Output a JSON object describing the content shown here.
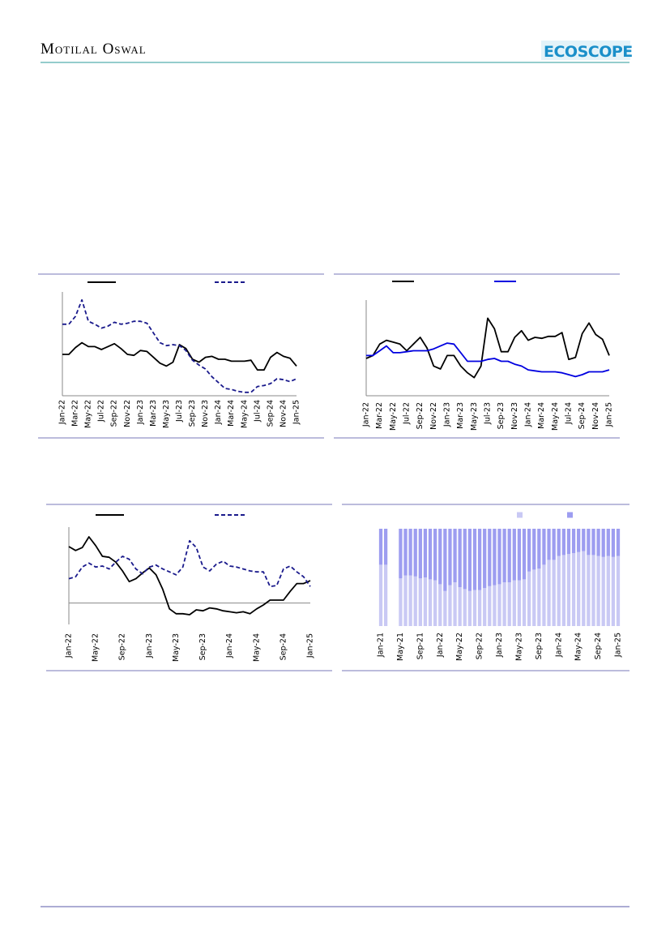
{
  "header": {
    "brand": "Motilal Oswal",
    "logo": "ECOSCOPE"
  },
  "chart_data": [
    {
      "type": "line",
      "categories": [
        "Jan-22",
        null,
        "Mar-22",
        null,
        "May-22",
        null,
        "Jul-22",
        null,
        "Sep-22",
        null,
        "Nov-22",
        null,
        "Jan-23",
        null,
        "Mar-23",
        null,
        "May-23",
        null,
        "Jul-23",
        null,
        "Sep-23",
        null,
        "Nov-23",
        null,
        "Jan-24",
        null,
        "Mar-24",
        null,
        "May-24",
        null,
        "Jul-24",
        null,
        "Sep-24",
        null,
        "Nov-24",
        null,
        "Jan-25"
      ],
      "ylim": [
        0,
        100
      ],
      "series": [
        {
          "color": "#000000",
          "dash": false,
          "values": [
            40,
            40,
            47,
            52,
            48,
            48,
            45,
            48,
            51,
            46,
            40,
            39,
            44,
            43,
            37,
            31,
            28,
            32,
            50,
            46,
            35,
            32,
            37,
            38,
            35,
            35,
            33,
            33,
            33,
            34,
            24,
            24,
            37,
            42,
            38,
            36,
            28
          ]
        },
        {
          "color": "#1a1a8c",
          "dash": true,
          "values": [
            71,
            71,
            79,
            96,
            74,
            71,
            67,
            69,
            73,
            71,
            72,
            74,
            74,
            72,
            62,
            52,
            49,
            50,
            49,
            44,
            34,
            29,
            25,
            17,
            11,
            5,
            4,
            2,
            1,
            1,
            7,
            8,
            10,
            15,
            14,
            12,
            15
          ]
        }
      ]
    },
    {
      "type": "line",
      "categories": [
        "Jan-22",
        null,
        "Mar-22",
        null,
        "May-22",
        null,
        "Jul-22",
        null,
        "Sep-22",
        null,
        "Nov-22",
        null,
        "Jan-23",
        null,
        "Mar-23",
        null,
        "May-23",
        null,
        "Jul-23",
        null,
        "Sep-23",
        null,
        "Nov-23",
        null,
        "Jan-24",
        null,
        "Mar-24",
        null,
        "May-24",
        null,
        "Jul-24",
        null,
        "Sep-24",
        null,
        "Nov-24",
        null,
        "Jan-25"
      ],
      "ylim": [
        0,
        100
      ],
      "series": [
        {
          "color": "#000000",
          "dash": false,
          "values": [
            39,
            42,
            54,
            58,
            56,
            54,
            47,
            54,
            61,
            50,
            31,
            28,
            42,
            42,
            31,
            24,
            19,
            31,
            81,
            70,
            46,
            46,
            61,
            68,
            58,
            61,
            60,
            62,
            62,
            66,
            38,
            40,
            65,
            76,
            64,
            59,
            42
          ]
        },
        {
          "color": "#0000e0",
          "dash": false,
          "values": [
            42,
            42,
            47,
            52,
            45,
            45,
            46,
            47,
            47,
            47,
            49,
            52,
            55,
            54,
            45,
            36,
            36,
            36,
            38,
            39,
            36,
            36,
            33,
            31,
            27,
            26,
            25,
            25,
            25,
            24,
            22,
            20,
            22,
            25,
            25,
            25,
            27
          ]
        }
      ]
    },
    {
      "type": "line",
      "categories": [
        "Jan-22",
        null,
        null,
        null,
        "May-22",
        null,
        null,
        null,
        "Sep-22",
        null,
        null,
        null,
        "Jan-23",
        null,
        null,
        null,
        "May-23",
        null,
        null,
        null,
        "Sep-23",
        null,
        null,
        null,
        "Jan-24",
        null,
        null,
        null,
        "May-24",
        null,
        null,
        null,
        "Sep-24",
        null,
        null,
        null,
        "Jan-25"
      ],
      "ylim": [
        -22,
        78
      ],
      "zero_line": true,
      "series": [
        {
          "color": "#000000",
          "dash": false,
          "values": [
            58,
            54,
            57,
            68,
            59,
            48,
            47,
            42,
            33,
            22,
            25,
            31,
            36,
            29,
            14,
            -6,
            -11,
            -11,
            -12,
            -7,
            -8,
            -5,
            -6,
            -8,
            -9,
            -10,
            -9,
            -11,
            -6,
            -2,
            3,
            3,
            3,
            12,
            20,
            20,
            23
          ]
        },
        {
          "color": "#1a1a8c",
          "dash": true,
          "values": [
            25,
            27,
            37,
            41,
            37,
            38,
            35,
            42,
            48,
            45,
            35,
            30,
            37,
            39,
            35,
            32,
            29,
            37,
            64,
            57,
            37,
            33,
            40,
            43,
            38,
            37,
            35,
            33,
            32,
            32,
            17,
            18,
            35,
            38,
            32,
            27,
            17
          ]
        }
      ]
    },
    {
      "type": "bar",
      "stacked": true,
      "categories": [
        "Jan-21",
        null,
        null,
        null,
        "May-21",
        null,
        null,
        null,
        "Sep-21",
        null,
        null,
        null,
        "Jan-22",
        null,
        null,
        null,
        "May-22",
        null,
        null,
        null,
        "Sep-22",
        null,
        null,
        null,
        "Jan-23",
        null,
        null,
        null,
        "May-23",
        null,
        null,
        null,
        "Sep-23",
        null,
        null,
        null,
        "Jan-24",
        null,
        null,
        null,
        "May-24",
        null,
        null,
        null,
        "Sep-24",
        null,
        null,
        null,
        "Jan-25"
      ],
      "ylim": [
        0,
        100
      ],
      "series": [
        {
          "color": "#c9c9f4",
          "values": [
            63,
            63,
            null,
            null,
            49,
            52,
            52,
            51,
            49,
            50,
            48,
            47,
            43,
            36,
            42,
            45,
            40,
            38,
            36,
            37,
            37,
            39,
            41,
            42,
            43,
            45,
            45,
            47,
            47,
            48,
            56,
            58,
            59,
            63,
            68,
            68,
            72,
            73,
            74,
            75,
            76,
            77,
            73,
            73,
            72,
            71,
            72,
            71,
            72
          ]
        },
        {
          "color": "#9d9df0",
          "values": [
            37,
            37,
            null,
            null,
            51,
            48,
            48,
            49,
            51,
            50,
            52,
            53,
            57,
            64,
            58,
            55,
            60,
            62,
            64,
            63,
            63,
            61,
            59,
            58,
            57,
            55,
            55,
            53,
            53,
            52,
            44,
            42,
            41,
            37,
            32,
            32,
            28,
            27,
            26,
            25,
            24,
            23,
            27,
            27,
            28,
            29,
            28,
            29,
            28
          ]
        }
      ]
    }
  ]
}
